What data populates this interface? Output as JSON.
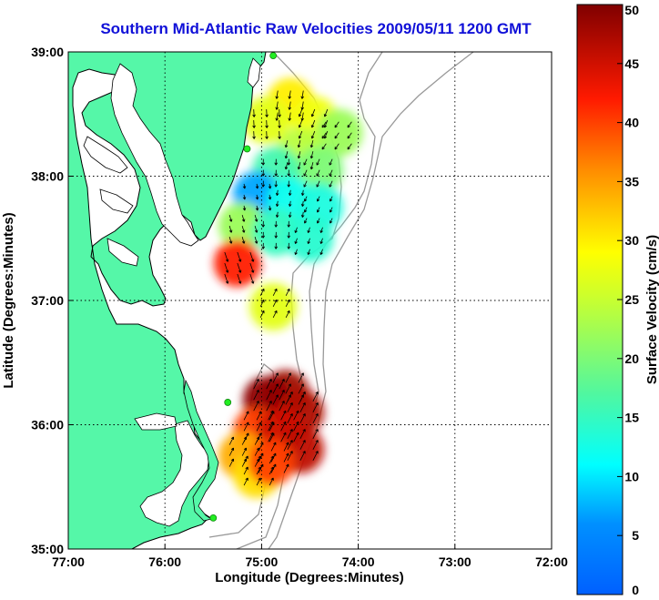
{
  "title": "Southern Mid-Atlantic Raw Velocities 2009/05/11 1200 GMT",
  "xlabel": "Longitude (Degrees:Minutes)",
  "ylabel": "Latitude (Degrees:Minutes)",
  "colorbar_label": "Surface Velocity (cm/s)",
  "x_ticks": [
    "77:00",
    "76:00",
    "75:00",
    "74:00",
    "73:00",
    "72:00"
  ],
  "y_ticks": [
    "39:00",
    "38:00",
    "37:00",
    "36:00",
    "35:00"
  ],
  "colorbar_ticks": [
    "0",
    "5",
    "10",
    "15",
    "20",
    "25",
    "30",
    "35",
    "40",
    "45",
    "50"
  ],
  "colors": {
    "land": "#55f7a8",
    "title": "#1010d8",
    "coast": "#000000",
    "bathymetry": "#999999",
    "station": "#22ee22"
  },
  "chart_data": {
    "type": "heatmap",
    "variable": "surface current velocity",
    "lon_range": [
      -77,
      -72
    ],
    "lat_range": [
      35,
      39
    ],
    "color_range": [
      0,
      50
    ],
    "colormap": "jet",
    "grid_lines": true,
    "stations": [
      {
        "lon": -74.88,
        "lat": 38.97
      },
      {
        "lon": -75.15,
        "lat": 38.22
      },
      {
        "lon": -75.35,
        "lat": 36.18
      },
      {
        "lon": -75.5,
        "lat": 35.25
      }
    ],
    "velocity_regions": [
      {
        "lon": -74.7,
        "lat": 38.6,
        "speed": 30
      },
      {
        "lon": -74.45,
        "lat": 38.45,
        "speed": 28
      },
      {
        "lon": -74.95,
        "lat": 38.45,
        "speed": 27
      },
      {
        "lon": -74.2,
        "lat": 38.35,
        "speed": 22
      },
      {
        "lon": -74.6,
        "lat": 38.2,
        "speed": 24
      },
      {
        "lon": -74.4,
        "lat": 38.05,
        "speed": 20
      },
      {
        "lon": -74.85,
        "lat": 38.05,
        "speed": 16
      },
      {
        "lon": -75.05,
        "lat": 37.85,
        "speed": 7
      },
      {
        "lon": -74.7,
        "lat": 37.8,
        "speed": 12
      },
      {
        "lon": -74.4,
        "lat": 37.75,
        "speed": 13
      },
      {
        "lon": -75.2,
        "lat": 37.6,
        "speed": 22
      },
      {
        "lon": -74.85,
        "lat": 37.55,
        "speed": 15
      },
      {
        "lon": -74.5,
        "lat": 37.5,
        "speed": 14
      },
      {
        "lon": -75.25,
        "lat": 37.3,
        "speed": 42
      },
      {
        "lon": -74.88,
        "lat": 36.95,
        "speed": 27
      },
      {
        "lon": -74.75,
        "lat": 36.25,
        "speed": 48
      },
      {
        "lon": -74.95,
        "lat": 36.2,
        "speed": 49
      },
      {
        "lon": -74.6,
        "lat": 36.1,
        "speed": 47
      },
      {
        "lon": -75.05,
        "lat": 35.95,
        "speed": 40
      },
      {
        "lon": -74.8,
        "lat": 35.95,
        "speed": 45
      },
      {
        "lon": -74.6,
        "lat": 35.8,
        "speed": 46
      },
      {
        "lon": -75.2,
        "lat": 35.75,
        "speed": 34
      },
      {
        "lon": -75.05,
        "lat": 35.6,
        "speed": 31
      },
      {
        "lon": -74.9,
        "lat": 35.7,
        "speed": 40
      }
    ]
  }
}
